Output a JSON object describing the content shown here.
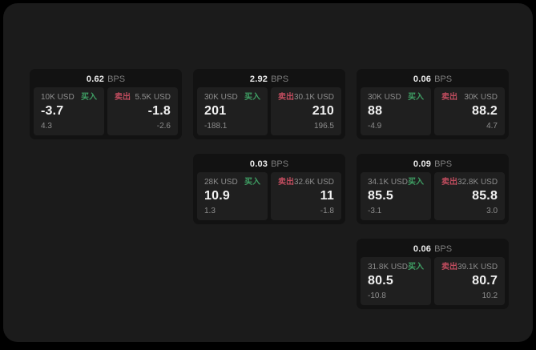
{
  "colors": {
    "buy": "#3f9f64",
    "sell": "#bf4c5e",
    "window_bg": "#1b1b1b",
    "card_bg": "#121212",
    "panel_bg": "#1f1f1f"
  },
  "cards": [
    {
      "bps": "0.62",
      "bps_unit": "BPS",
      "buy": {
        "amount": "10K USD",
        "side": "买入",
        "value": "-3.7",
        "sub": "4.3"
      },
      "sell": {
        "amount": "5.5K USD",
        "side": "卖出",
        "value": "-1.8",
        "sub": "-2.6"
      }
    },
    {
      "bps": "2.92",
      "bps_unit": "BPS",
      "buy": {
        "amount": "30K USD",
        "side": "买入",
        "value": "201",
        "sub": "-188.1"
      },
      "sell": {
        "amount": "30.1K USD",
        "side": "卖出",
        "value": "210",
        "sub": "196.5"
      }
    },
    {
      "bps": "0.06",
      "bps_unit": "BPS",
      "buy": {
        "amount": "30K USD",
        "side": "买入",
        "value": "88",
        "sub": "-4.9"
      },
      "sell": {
        "amount": "30K USD",
        "side": "卖出",
        "value": "88.2",
        "sub": "4.7"
      }
    },
    {
      "bps": "0.03",
      "bps_unit": "BPS",
      "buy": {
        "amount": "28K USD",
        "side": "买入",
        "value": "10.9",
        "sub": "1.3"
      },
      "sell": {
        "amount": "32.6K USD",
        "side": "卖出",
        "value": "11",
        "sub": "-1.8"
      }
    },
    {
      "bps": "0.09",
      "bps_unit": "BPS",
      "buy": {
        "amount": "34.1K USD",
        "side": "买入",
        "value": "85.5",
        "sub": "-3.1"
      },
      "sell": {
        "amount": "32.8K USD",
        "side": "卖出",
        "value": "85.8",
        "sub": "3.0"
      }
    },
    {
      "bps": "0.06",
      "bps_unit": "BPS",
      "buy": {
        "amount": "31.8K USD",
        "side": "买入",
        "value": "80.5",
        "sub": "-10.8"
      },
      "sell": {
        "amount": "39.1K USD",
        "side": "卖出",
        "value": "80.7",
        "sub": "10.2"
      }
    }
  ]
}
